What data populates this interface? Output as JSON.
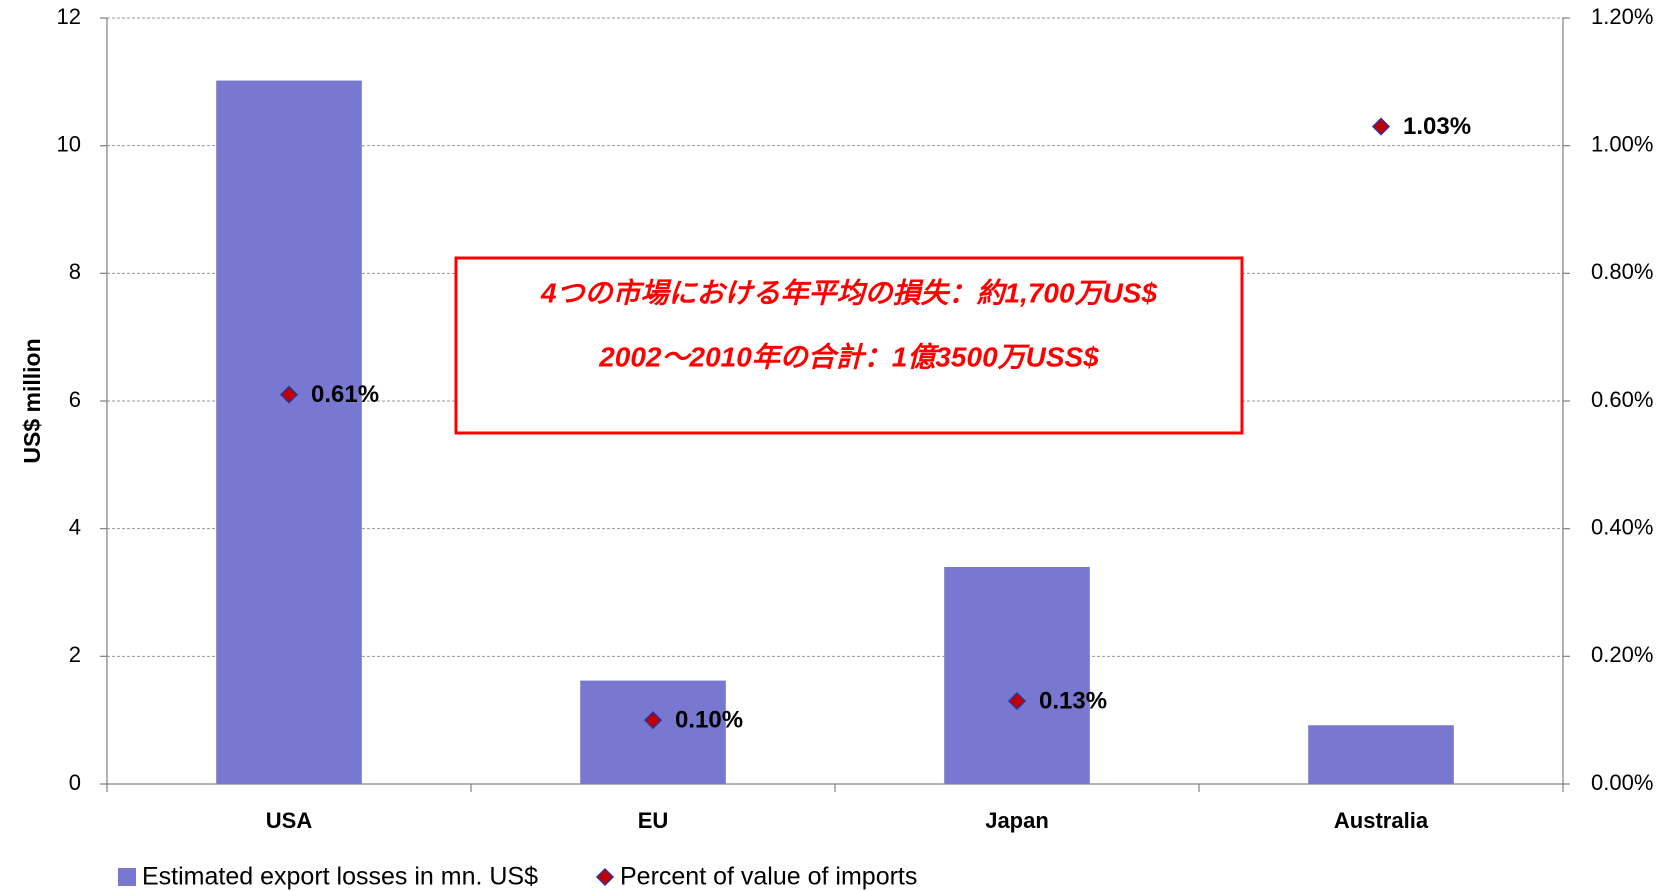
{
  "chart_data": {
    "type": "bar",
    "categories": [
      "USA",
      "EU",
      "Japan",
      "Australia"
    ],
    "y_label": "US$ million",
    "series": [
      {
        "name": "Estimated export losses in mn. US$",
        "type": "bar",
        "color": "#7878d0",
        "values": [
          11.02,
          1.62,
          3.4,
          0.92
        ]
      },
      {
        "name": "Percent of value of imports",
        "type": "scatter",
        "axis": "y2",
        "color": "#c00000",
        "values": [
          0.61,
          0.1,
          0.13,
          1.03
        ],
        "value_labels": [
          "0.61%",
          "0.10%",
          "0.13%",
          "1.03%"
        ]
      }
    ],
    "ylim": [
      0,
      12
    ],
    "yticks": [
      0,
      2,
      4,
      6,
      8,
      10,
      12
    ],
    "y2lim": [
      0,
      1.2
    ],
    "y2ticks": [
      {
        "value": 0,
        "label": "0.00%"
      },
      {
        "value": 0.2,
        "label": "0.20%"
      },
      {
        "value": 0.4,
        "label": "0.40%"
      },
      {
        "value": 0.6,
        "label": "0.60%"
      },
      {
        "value": 0.8,
        "label": "0.80%"
      },
      {
        "value": 1.0,
        "label": "1.00%"
      },
      {
        "value": 1.2,
        "label": "1.20%"
      }
    ],
    "grid": true,
    "legend": "bottom",
    "annotations": [
      "4つの市場における年平均の損失：約1,700万US$",
      "2002～2010年の合計：1億3500万USS$"
    ]
  }
}
